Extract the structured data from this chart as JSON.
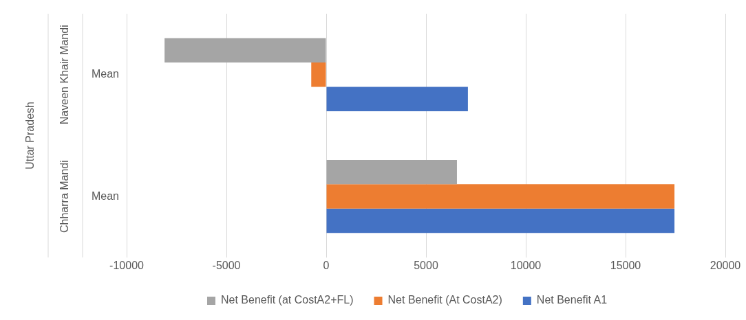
{
  "chart_data": {
    "type": "bar",
    "orientation": "horizontal",
    "categories": [
      "Mean",
      "Mean"
    ],
    "series": [
      {
        "name": "Net Benefit (at CostA2+FL)",
        "color": "#a5a5a5",
        "values": [
          -8100,
          6550
        ]
      },
      {
        "name": "Net Benefit (At CostA2)",
        "color": "#ed7d31",
        "values": [
          -750,
          17450
        ]
      },
      {
        "name": "Net Benefit A1",
        "color": "#4472c4",
        "values": [
          7100,
          17450
        ]
      }
    ],
    "xlim": [
      -10000,
      20000
    ],
    "xticks": [
      -10000,
      -5000,
      0,
      5000,
      10000,
      15000,
      20000
    ],
    "grid": "x",
    "legend": "bottom",
    "annotations": [
      "Naveen Khair Mandi",
      "Chharra Mandi",
      "Uttar Pradesh"
    ]
  }
}
